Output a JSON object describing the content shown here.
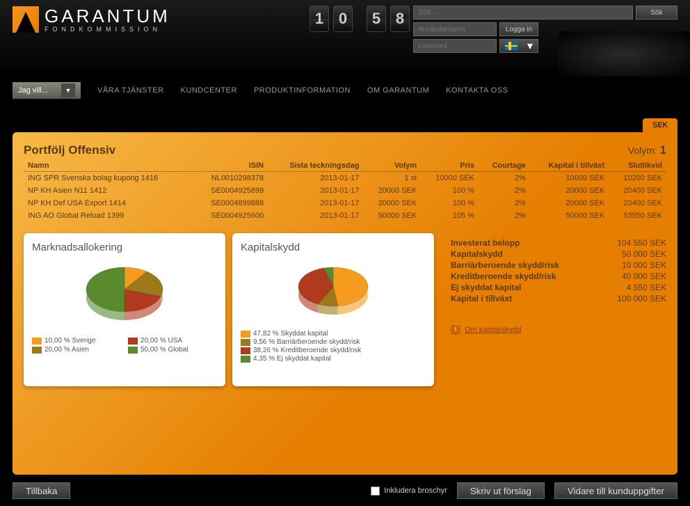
{
  "logo": {
    "main": "GARANTUM",
    "sub": "FONDKOMMISSION"
  },
  "clock": {
    "h1": "1",
    "h2": "0",
    "m1": "5",
    "m2": "8"
  },
  "search": {
    "placeholder": "Sök...",
    "button": "Sök"
  },
  "login": {
    "user_placeholder": "Användarnamn",
    "pass_placeholder": "Lösenord",
    "button": "Logga in"
  },
  "nav": {
    "dropdown": "Jag vill...",
    "items": [
      "VÅRA TJÄNSTER",
      "KUNDCENTER",
      "PRODUKTINFORMATION",
      "OM GARANTUM",
      "KONTAKTA OSS"
    ]
  },
  "tab": "SEK",
  "portfolio": {
    "title": "Portfölj Offensiv",
    "volume_label": "Volym:",
    "volume_value": "1",
    "columns": [
      "Namn",
      "ISIN",
      "Sista teckningsdag",
      "Volym",
      "Pris",
      "Courtage",
      "Kapital i tillväxt",
      "Slutlikvid"
    ],
    "rows": [
      [
        "ING SPR Svenska bolag kupong 1416",
        "NL0010298378",
        "2013-01-17",
        "1 st",
        "10000 SEK",
        "2%",
        "10000 SEK",
        "10200 SEK"
      ],
      [
        "NP KH Asien N11 1412",
        "SE0004925899",
        "2013-01-17",
        "20000 SEK",
        "100 %",
        "2%",
        "20000 SEK",
        "20400 SEK"
      ],
      [
        "NP KH Def USA Export 1414",
        "SE0004899888",
        "2013-01-17",
        "20000 SEK",
        "100 %",
        "2%",
        "20000 SEK",
        "20400 SEK"
      ],
      [
        "ING AO Global Reload 1399",
        "SE0004925600",
        "2013-01-17",
        "50000 SEK",
        "105 %",
        "2%",
        "50000 SEK",
        "53550 SEK"
      ]
    ]
  },
  "chart1": {
    "title": "Marknadsallokering",
    "type": "pie",
    "slices": [
      {
        "label": "10,00 % Sverige",
        "value": 10,
        "color": "#f59b1e"
      },
      {
        "label": "20,00 % Asien",
        "value": 20,
        "color": "#9c7a1a"
      },
      {
        "label": "20,00 % USA",
        "value": 20,
        "color": "#b03a1e"
      },
      {
        "label": "50,00 % Global",
        "value": 50,
        "color": "#5a8a2e"
      }
    ]
  },
  "chart2": {
    "title": "Kapitalskydd",
    "type": "pie",
    "slices": [
      {
        "label": "47,82 % Skyddat kapital",
        "value": 47.82,
        "color": "#f59b1e"
      },
      {
        "label": "9,56 % Barriärberoende skydd/risk",
        "value": 9.56,
        "color": "#9c7a1a"
      },
      {
        "label": "38,26 % Kreditberoende skydd/risk",
        "value": 38.26,
        "color": "#b03a1e"
      },
      {
        "label": "4,35 % Ej skyddat kapital",
        "value": 4.35,
        "color": "#5a8a2e"
      }
    ]
  },
  "summary": {
    "rows": [
      {
        "label": "Investerat belopp",
        "value": "104 550 SEK"
      },
      {
        "label": "Kapitalskydd",
        "value": "50 000 SEK"
      },
      {
        "label": "Barriärberoende skydd/risk",
        "value": "10 000 SEK"
      },
      {
        "label": "Kreditberoende skydd/risk",
        "value": "40 000 SEK"
      },
      {
        "label": "Ej skyddat kapital",
        "value": "4 550 SEK"
      },
      {
        "label": "Kapital i tillväxt",
        "value": "100 000 SEK"
      }
    ],
    "about_link": "Om kapitalskydd"
  },
  "bottom": {
    "back": "Tillbaka",
    "checkbox": "Inkludera broschyr",
    "print": "Skriv ut förslag",
    "next": "Vidare till kunduppgifter"
  }
}
